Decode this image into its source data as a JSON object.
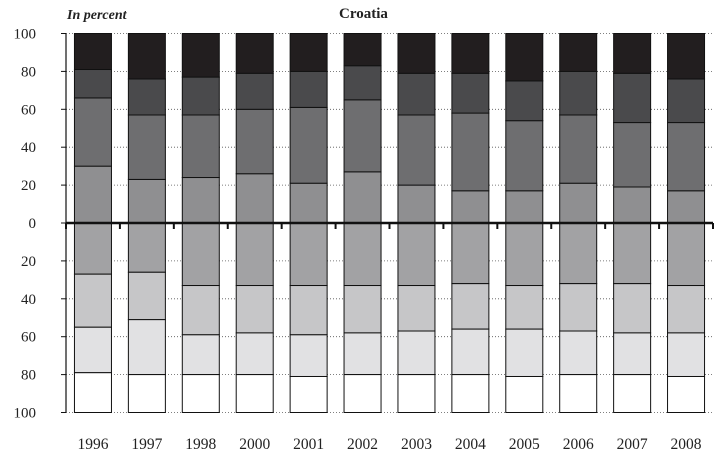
{
  "chart_data": {
    "type": "bar",
    "stacked": "diverging",
    "title": "Croatia",
    "unit_label": "In percent",
    "categories": [
      "1996",
      "1997",
      "1998",
      "2000",
      "2001",
      "2002",
      "2003",
      "2004",
      "2005",
      "2006",
      "2007",
      "2008"
    ],
    "y_tick_labels": [
      "100",
      "80",
      "60",
      "40",
      "20",
      "0",
      "20",
      "40",
      "60",
      "80",
      "100"
    ],
    "ylim_upper": [
      0,
      100
    ],
    "ylim_lower": [
      0,
      100
    ],
    "grid": "dotted-horizontal",
    "upper": {
      "colors": [
        "#8f8f91",
        "#6e6e70",
        "#4a4a4c",
        "#221e1f"
      ],
      "boundaries": [
        [
          30,
          66,
          81
        ],
        [
          23,
          57,
          76
        ],
        [
          24,
          57,
          77
        ],
        [
          26,
          60,
          79
        ],
        [
          21,
          61,
          80
        ],
        [
          27,
          65,
          83
        ],
        [
          20,
          57,
          79
        ],
        [
          17,
          58,
          79
        ],
        [
          17,
          54,
          75
        ],
        [
          21,
          57,
          80
        ],
        [
          19,
          53,
          79
        ],
        [
          17,
          53,
          76
        ]
      ]
    },
    "lower": {
      "colors": [
        "#a2a2a4",
        "#c6c6c8",
        "#e1e1e3",
        "#ffffff"
      ],
      "boundaries": [
        [
          27,
          55,
          79
        ],
        [
          26,
          51,
          80
        ],
        [
          33,
          59,
          80
        ],
        [
          33,
          58,
          80
        ],
        [
          33,
          59,
          81
        ],
        [
          33,
          58,
          80
        ],
        [
          33,
          57,
          80
        ],
        [
          32,
          56,
          80
        ],
        [
          33,
          56,
          81
        ],
        [
          32,
          57,
          80
        ],
        [
          32,
          58,
          80
        ],
        [
          33,
          58,
          81
        ]
      ]
    }
  }
}
